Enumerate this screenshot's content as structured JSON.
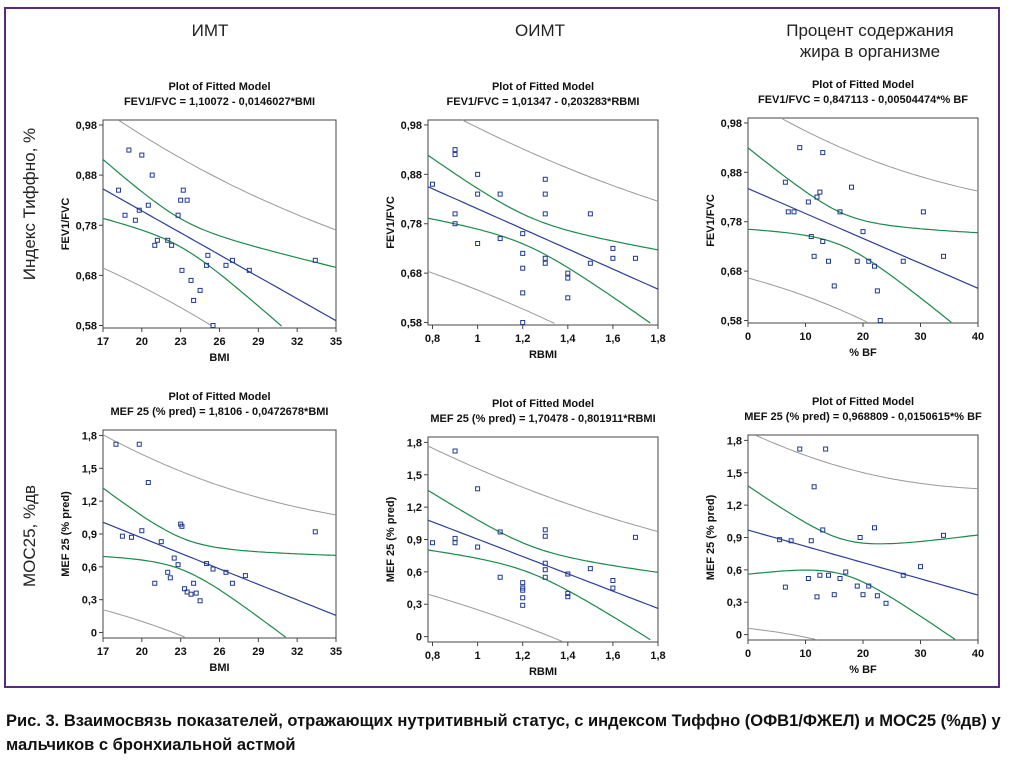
{
  "column_headers": [
    "ИМТ",
    "ОИМТ",
    "Процент содержания жира в организме"
  ],
  "row_headers": [
    "Индекс Тиффно, %",
    "МОС25, %дв"
  ],
  "caption": "Рис. 3. Взаимосвязь показателей, отражающих нутритивный статус, с индексом Тиффно (ОФВ1/ФЖЕЛ) и МОС25 (%дв) у мальчиков с бронхиальной астмой",
  "colors": {
    "frame": "#5a2a82",
    "points": "#1f3a93",
    "fit_line": "#2a3f9a",
    "confidence": "#1b8a4a",
    "prediction": "#9a9a9a"
  },
  "chart_data": [
    {
      "type": "scatter",
      "title": "Plot of Fitted Model",
      "subtitle": "FEV1/FVC = 1,10072 - 0,0146027*BMI",
      "xlabel": "BMI",
      "ylabel": "FEV1/FVC",
      "xlim": [
        17,
        35
      ],
      "ylim": [
        0.575,
        0.99
      ],
      "xticks": [
        "17",
        "20",
        "23",
        "26",
        "29",
        "32",
        "35"
      ],
      "yticks": [
        "0,58",
        "0,68",
        "0,78",
        "0,88",
        "0,98"
      ],
      "fit": {
        "intercept": 1.10072,
        "slope": -0.0146027
      },
      "x": [
        18.2,
        18.7,
        19.0,
        19.5,
        19.8,
        20.0,
        20.5,
        20.8,
        21.0,
        21.2,
        22.0,
        22.3,
        22.8,
        23.0,
        23.1,
        23.2,
        23.5,
        23.8,
        24.0,
        24.5,
        25.0,
        25.1,
        25.5,
        26.5,
        27.0,
        28.3,
        33.4
      ],
      "y": [
        0.85,
        0.8,
        0.93,
        0.79,
        0.81,
        0.92,
        0.82,
        0.88,
        0.74,
        0.75,
        0.75,
        0.74,
        0.8,
        0.83,
        0.69,
        0.85,
        0.83,
        0.67,
        0.63,
        0.65,
        0.7,
        0.72,
        0.58,
        0.7,
        0.71,
        0.69,
        0.71
      ]
    },
    {
      "type": "scatter",
      "title": "Plot of Fitted Model",
      "subtitle": "FEV1/FVC = 1,01347 - 0,203283*RBMI",
      "xlabel": "RBMI",
      "ylabel": "FEV1/FVC",
      "xlim": [
        0.78,
        1.8
      ],
      "ylim": [
        0.575,
        0.99
      ],
      "xticks": [
        "0,8",
        "1",
        "1,2",
        "1,4",
        "1,6",
        "1,8"
      ],
      "yticks": [
        "0,58",
        "0,68",
        "0,78",
        "0,88",
        "0,98"
      ],
      "fit": {
        "intercept": 1.01347,
        "slope": -0.203283
      },
      "x": [
        0.8,
        0.9,
        0.9,
        0.9,
        0.9,
        1.0,
        1.0,
        1.0,
        1.1,
        1.1,
        1.2,
        1.2,
        1.2,
        1.2,
        1.2,
        1.3,
        1.3,
        1.3,
        1.3,
        1.3,
        1.4,
        1.4,
        1.4,
        1.5,
        1.5,
        1.6,
        1.6,
        1.7
      ],
      "y": [
        0.86,
        0.93,
        0.92,
        0.8,
        0.78,
        0.88,
        0.84,
        0.74,
        0.84,
        0.75,
        0.76,
        0.72,
        0.69,
        0.64,
        0.58,
        0.87,
        0.84,
        0.8,
        0.71,
        0.7,
        0.67,
        0.63,
        0.68,
        0.8,
        0.7,
        0.73,
        0.71,
        0.71
      ]
    },
    {
      "type": "scatter",
      "title": "Plot of Fitted Model",
      "subtitle": "FEV1/FVC = 0,847113 - 0,00504474*% BF",
      "xlabel": "% BF",
      "ylabel": "FEV1/FVC",
      "xlim": [
        0,
        40
      ],
      "ylim": [
        0.575,
        0.99
      ],
      "xticks": [
        "0",
        "10",
        "20",
        "30",
        "40"
      ],
      "yticks": [
        "0,58",
        "0,68",
        "0,78",
        "0,88",
        "0,98"
      ],
      "fit": {
        "intercept": 0.847113,
        "slope": -0.00504474
      },
      "x": [
        6.5,
        7.0,
        8.0,
        9.0,
        10.5,
        11.0,
        11.5,
        12.0,
        12.5,
        13.0,
        13.0,
        14.0,
        15.0,
        16.0,
        18.0,
        19.0,
        20.0,
        21.0,
        22.0,
        22.5,
        23.0,
        27.0,
        30.5,
        34.0
      ],
      "y": [
        0.86,
        0.8,
        0.8,
        0.93,
        0.82,
        0.75,
        0.71,
        0.83,
        0.84,
        0.74,
        0.92,
        0.7,
        0.65,
        0.8,
        0.85,
        0.7,
        0.76,
        0.7,
        0.69,
        0.64,
        0.58,
        0.7,
        0.8,
        0.71
      ]
    },
    {
      "type": "scatter",
      "title": "Plot of Fitted Model",
      "subtitle": "MEF 25 (% pred) = 1,8106 - 0,0472678*BMI",
      "xlabel": "BMI",
      "ylabel": "MEF 25 (% pred)",
      "xlim": [
        17,
        35
      ],
      "ylim": [
        -0.05,
        1.85
      ],
      "xticks": [
        "17",
        "20",
        "23",
        "26",
        "29",
        "32",
        "35"
      ],
      "yticks": [
        "0",
        "0,3",
        "0,6",
        "0,9",
        "1,2",
        "1,5",
        "1,8"
      ],
      "fit": {
        "intercept": 1.8106,
        "slope": -0.0472678
      },
      "x": [
        18.0,
        18.5,
        19.2,
        19.8,
        20.0,
        20.5,
        21.0,
        21.5,
        22.0,
        22.2,
        22.5,
        22.8,
        23.0,
        23.1,
        23.3,
        23.5,
        23.8,
        24.0,
        24.2,
        24.5,
        25.0,
        25.5,
        26.5,
        27.0,
        28.0,
        33.4
      ],
      "y": [
        1.72,
        0.88,
        0.87,
        1.72,
        0.93,
        1.37,
        0.45,
        0.83,
        0.55,
        0.5,
        0.68,
        0.62,
        0.99,
        0.97,
        0.4,
        0.37,
        0.35,
        0.45,
        0.36,
        0.29,
        0.63,
        0.58,
        0.55,
        0.45,
        0.52,
        0.92
      ]
    },
    {
      "type": "scatter",
      "title": "Plot of Fitted Model",
      "subtitle": "MEF 25 (% pred) = 1,70478 - 0,801911*RBMI",
      "xlabel": "RBMI",
      "ylabel": "MEF 25 (% pred)",
      "xlim": [
        0.78,
        1.8
      ],
      "ylim": [
        -0.05,
        1.85
      ],
      "xticks": [
        "0,8",
        "1",
        "1,2",
        "1,4",
        "1,6",
        "1,8"
      ],
      "yticks": [
        "0",
        "0,3",
        "0,6",
        "0,9",
        "1,2",
        "1,5",
        "1,8"
      ],
      "fit": {
        "intercept": 1.70478,
        "slope": -0.801911
      },
      "x": [
        0.8,
        0.9,
        0.9,
        0.9,
        1.0,
        1.0,
        1.1,
        1.1,
        1.2,
        1.2,
        1.2,
        1.2,
        1.2,
        1.3,
        1.3,
        1.3,
        1.3,
        1.3,
        1.4,
        1.4,
        1.4,
        1.5,
        1.6,
        1.6,
        1.7
      ],
      "y": [
        0.87,
        1.72,
        0.91,
        0.87,
        1.37,
        0.83,
        0.97,
        0.55,
        0.5,
        0.45,
        0.43,
        0.36,
        0.29,
        0.99,
        0.93,
        0.68,
        0.62,
        0.55,
        0.58,
        0.4,
        0.37,
        0.63,
        0.52,
        0.45,
        0.92
      ]
    },
    {
      "type": "scatter",
      "title": "Plot of Fitted Model",
      "subtitle": "MEF 25 (% pred) = 0,968809 - 0,0150615*% BF",
      "xlabel": "% BF",
      "ylabel": "MEF 25 (% pred)",
      "xlim": [
        0,
        40
      ],
      "ylim": [
        -0.05,
        1.85
      ],
      "xticks": [
        "0",
        "10",
        "20",
        "30",
        "40"
      ],
      "yticks": [
        "0",
        "0,3",
        "0,6",
        "0,9",
        "1,2",
        "1,5",
        "1,8"
      ],
      "fit": {
        "intercept": 0.968809,
        "slope": -0.0150615
      },
      "x": [
        5.5,
        6.5,
        7.5,
        9.0,
        10.5,
        11.0,
        11.5,
        12.0,
        12.5,
        13.0,
        13.5,
        14.0,
        15.0,
        16.0,
        17.0,
        19.0,
        19.5,
        20.0,
        21.0,
        22.0,
        22.5,
        24.0,
        27.0,
        30.0,
        34.0
      ],
      "y": [
        0.88,
        0.44,
        0.87,
        1.72,
        0.52,
        0.87,
        1.37,
        0.35,
        0.55,
        0.97,
        1.72,
        0.55,
        0.37,
        0.52,
        0.58,
        0.45,
        0.9,
        0.37,
        0.45,
        0.99,
        0.36,
        0.29,
        0.55,
        0.63,
        0.92
      ]
    }
  ]
}
